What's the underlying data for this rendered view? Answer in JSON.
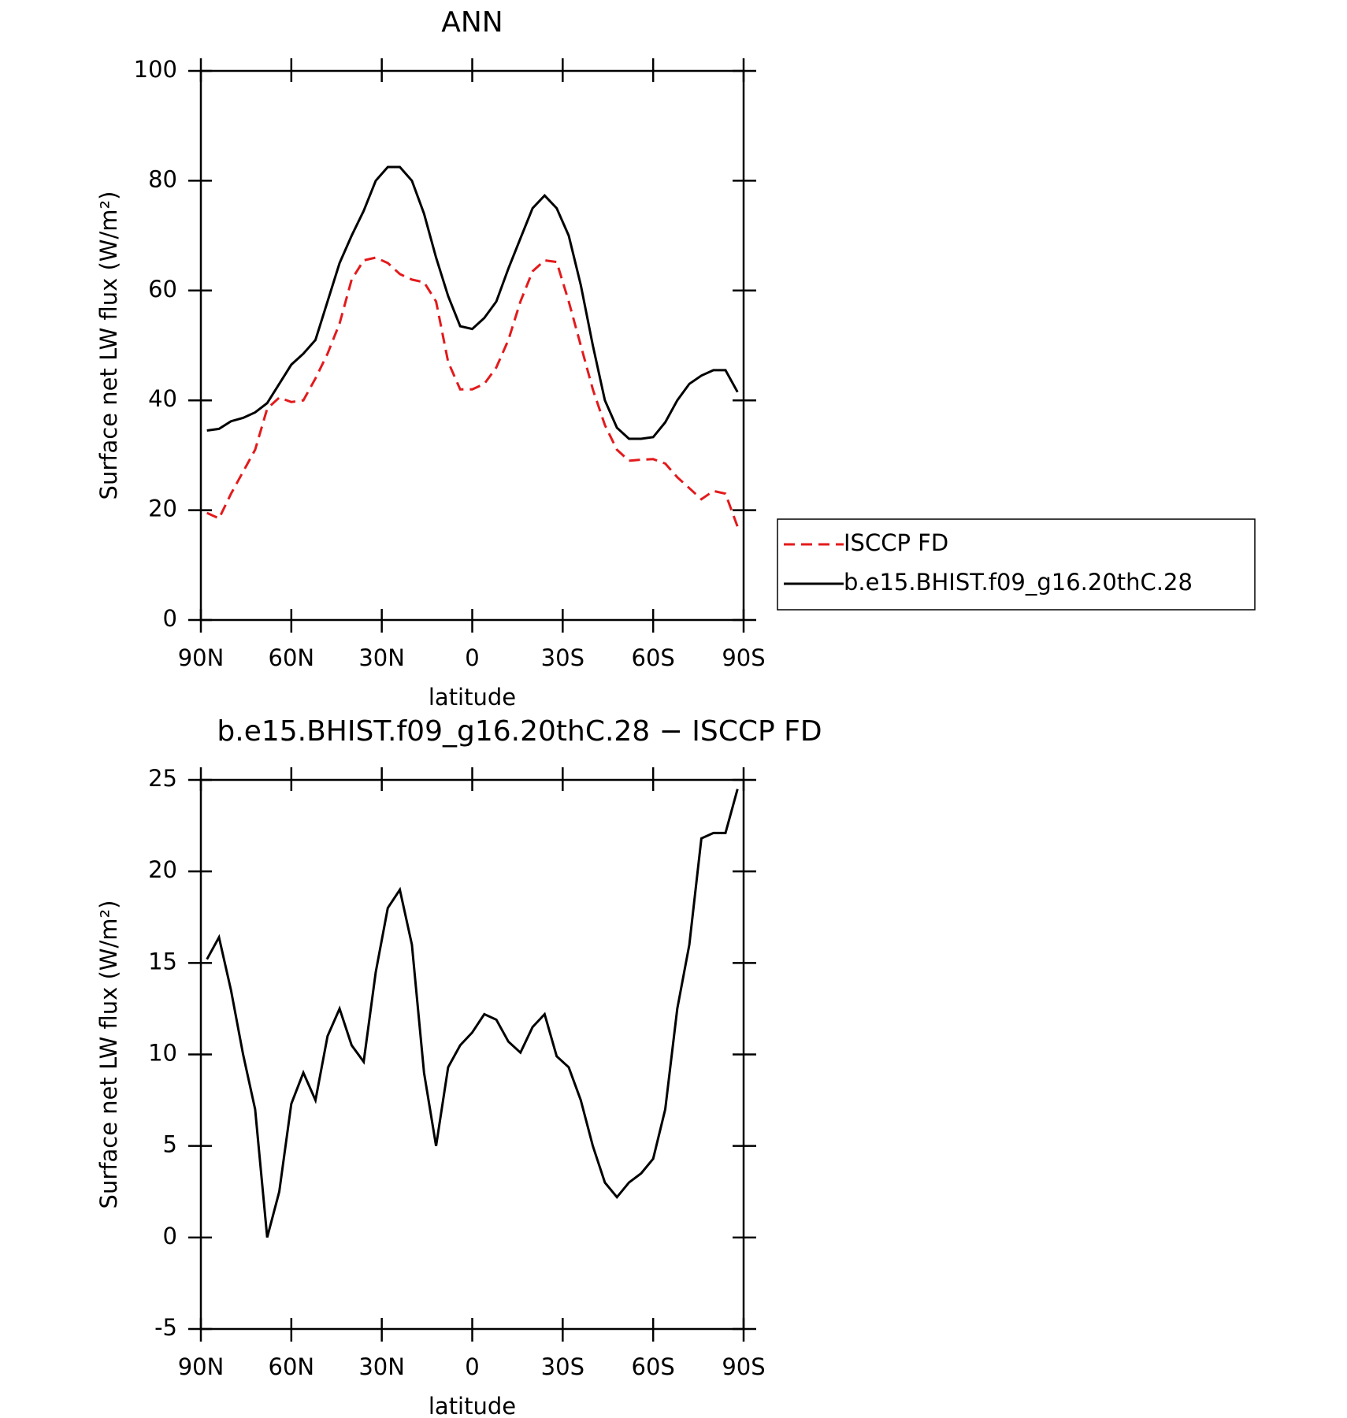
{
  "chart_data": [
    {
      "type": "line",
      "title": "ANN",
      "xlabel": "latitude",
      "ylabel": "Surface net LW flux (W/m²)",
      "x": [
        88,
        84,
        80,
        76,
        72,
        68,
        64,
        60,
        56,
        52,
        48,
        44,
        40,
        36,
        32,
        28,
        24,
        20,
        16,
        12,
        8,
        4,
        0,
        -4,
        -8,
        -12,
        -16,
        -20,
        -24,
        -28,
        -32,
        -36,
        -40,
        -44,
        -48,
        -52,
        -56,
        -60,
        -64,
        -68,
        -72,
        -76,
        -80,
        -84,
        -88
      ],
      "xlim": [
        90,
        -90
      ],
      "xticks": [
        {
          "value": 90,
          "label": "90N"
        },
        {
          "value": 60,
          "label": "60N"
        },
        {
          "value": 30,
          "label": "30N"
        },
        0,
        {
          "value": -30,
          "label": "30S"
        },
        {
          "value": -60,
          "label": "60S"
        },
        {
          "value": -90,
          "label": "90S"
        }
      ],
      "ylim": [
        0,
        100
      ],
      "yticks": [
        0,
        20,
        40,
        60,
        80,
        100
      ],
      "legend": "right",
      "series": [
        {
          "name": "ISCCP FD",
          "color": "#e31a1c",
          "linestyle": "dashed",
          "values": [
            19.5,
            18.5,
            23,
            27,
            31,
            38.5,
            40.5,
            39.7,
            40,
            44,
            48.5,
            54,
            62,
            65.5,
            66,
            65,
            63,
            62,
            61.5,
            58,
            47,
            42,
            42,
            43,
            46,
            51,
            58,
            63.5,
            65.5,
            65.2,
            58,
            50,
            42,
            35.5,
            31,
            29,
            29.2,
            29.3,
            28.5,
            26,
            24,
            22,
            23.5,
            23,
            17
          ]
        },
        {
          "name": "b.e15.BHIST.f09_g16.20thC.28",
          "color": "#000000",
          "linestyle": "solid",
          "values": [
            34.5,
            34.8,
            36.2,
            36.8,
            37.8,
            39.5,
            43,
            46.5,
            48.5,
            51,
            58,
            65,
            70,
            74.5,
            80,
            82.5,
            82.5,
            80,
            74,
            66,
            59,
            53.5,
            53,
            55,
            58,
            64,
            69.5,
            75,
            77.3,
            75,
            70,
            61,
            50,
            40,
            35,
            33,
            33,
            33.3,
            36,
            40,
            43,
            44.5,
            45.5,
            45.5,
            41.5
          ]
        }
      ]
    },
    {
      "type": "line",
      "title": "b.e15.BHIST.f09_g16.20thC.28 − ISCCP FD",
      "xlabel": "latitude",
      "ylabel": "Surface net LW flux (W/m²)",
      "x": [
        88,
        84,
        80,
        76,
        72,
        68,
        64,
        60,
        56,
        52,
        48,
        44,
        40,
        36,
        32,
        28,
        24,
        20,
        16,
        12,
        8,
        4,
        0,
        -4,
        -8,
        -12,
        -16,
        -20,
        -24,
        -28,
        -32,
        -36,
        -40,
        -44,
        -48,
        -52,
        -56,
        -60,
        -64,
        -68,
        -72,
        -76,
        -80,
        -84,
        -88
      ],
      "xlim": [
        90,
        -90
      ],
      "xticks": [
        {
          "value": 90,
          "label": "90N"
        },
        {
          "value": 60,
          "label": "60N"
        },
        {
          "value": 30,
          "label": "30N"
        },
        0,
        {
          "value": -30,
          "label": "30S"
        },
        {
          "value": -60,
          "label": "60S"
        },
        {
          "value": -90,
          "label": "90S"
        }
      ],
      "ylim": [
        -5,
        25
      ],
      "yticks": [
        -5,
        0,
        5,
        10,
        15,
        20,
        25
      ],
      "series": [
        {
          "color": "#000000",
          "linestyle": "solid",
          "values": [
            15.2,
            16.4,
            13.5,
            10,
            7,
            0,
            2.5,
            7.3,
            9,
            7.5,
            11,
            12.5,
            10.5,
            9.6,
            14.5,
            18,
            19,
            16,
            9,
            5,
            9.3,
            10.5,
            11.2,
            12.2,
            11.9,
            10.7,
            10.1,
            11.5,
            12.2,
            9.9,
            9.3,
            7.5,
            5,
            3,
            2.2,
            3,
            3.5,
            4.3,
            7,
            12.5,
            16,
            21.8,
            22.1,
            22.1,
            24.5
          ]
        }
      ]
    }
  ]
}
